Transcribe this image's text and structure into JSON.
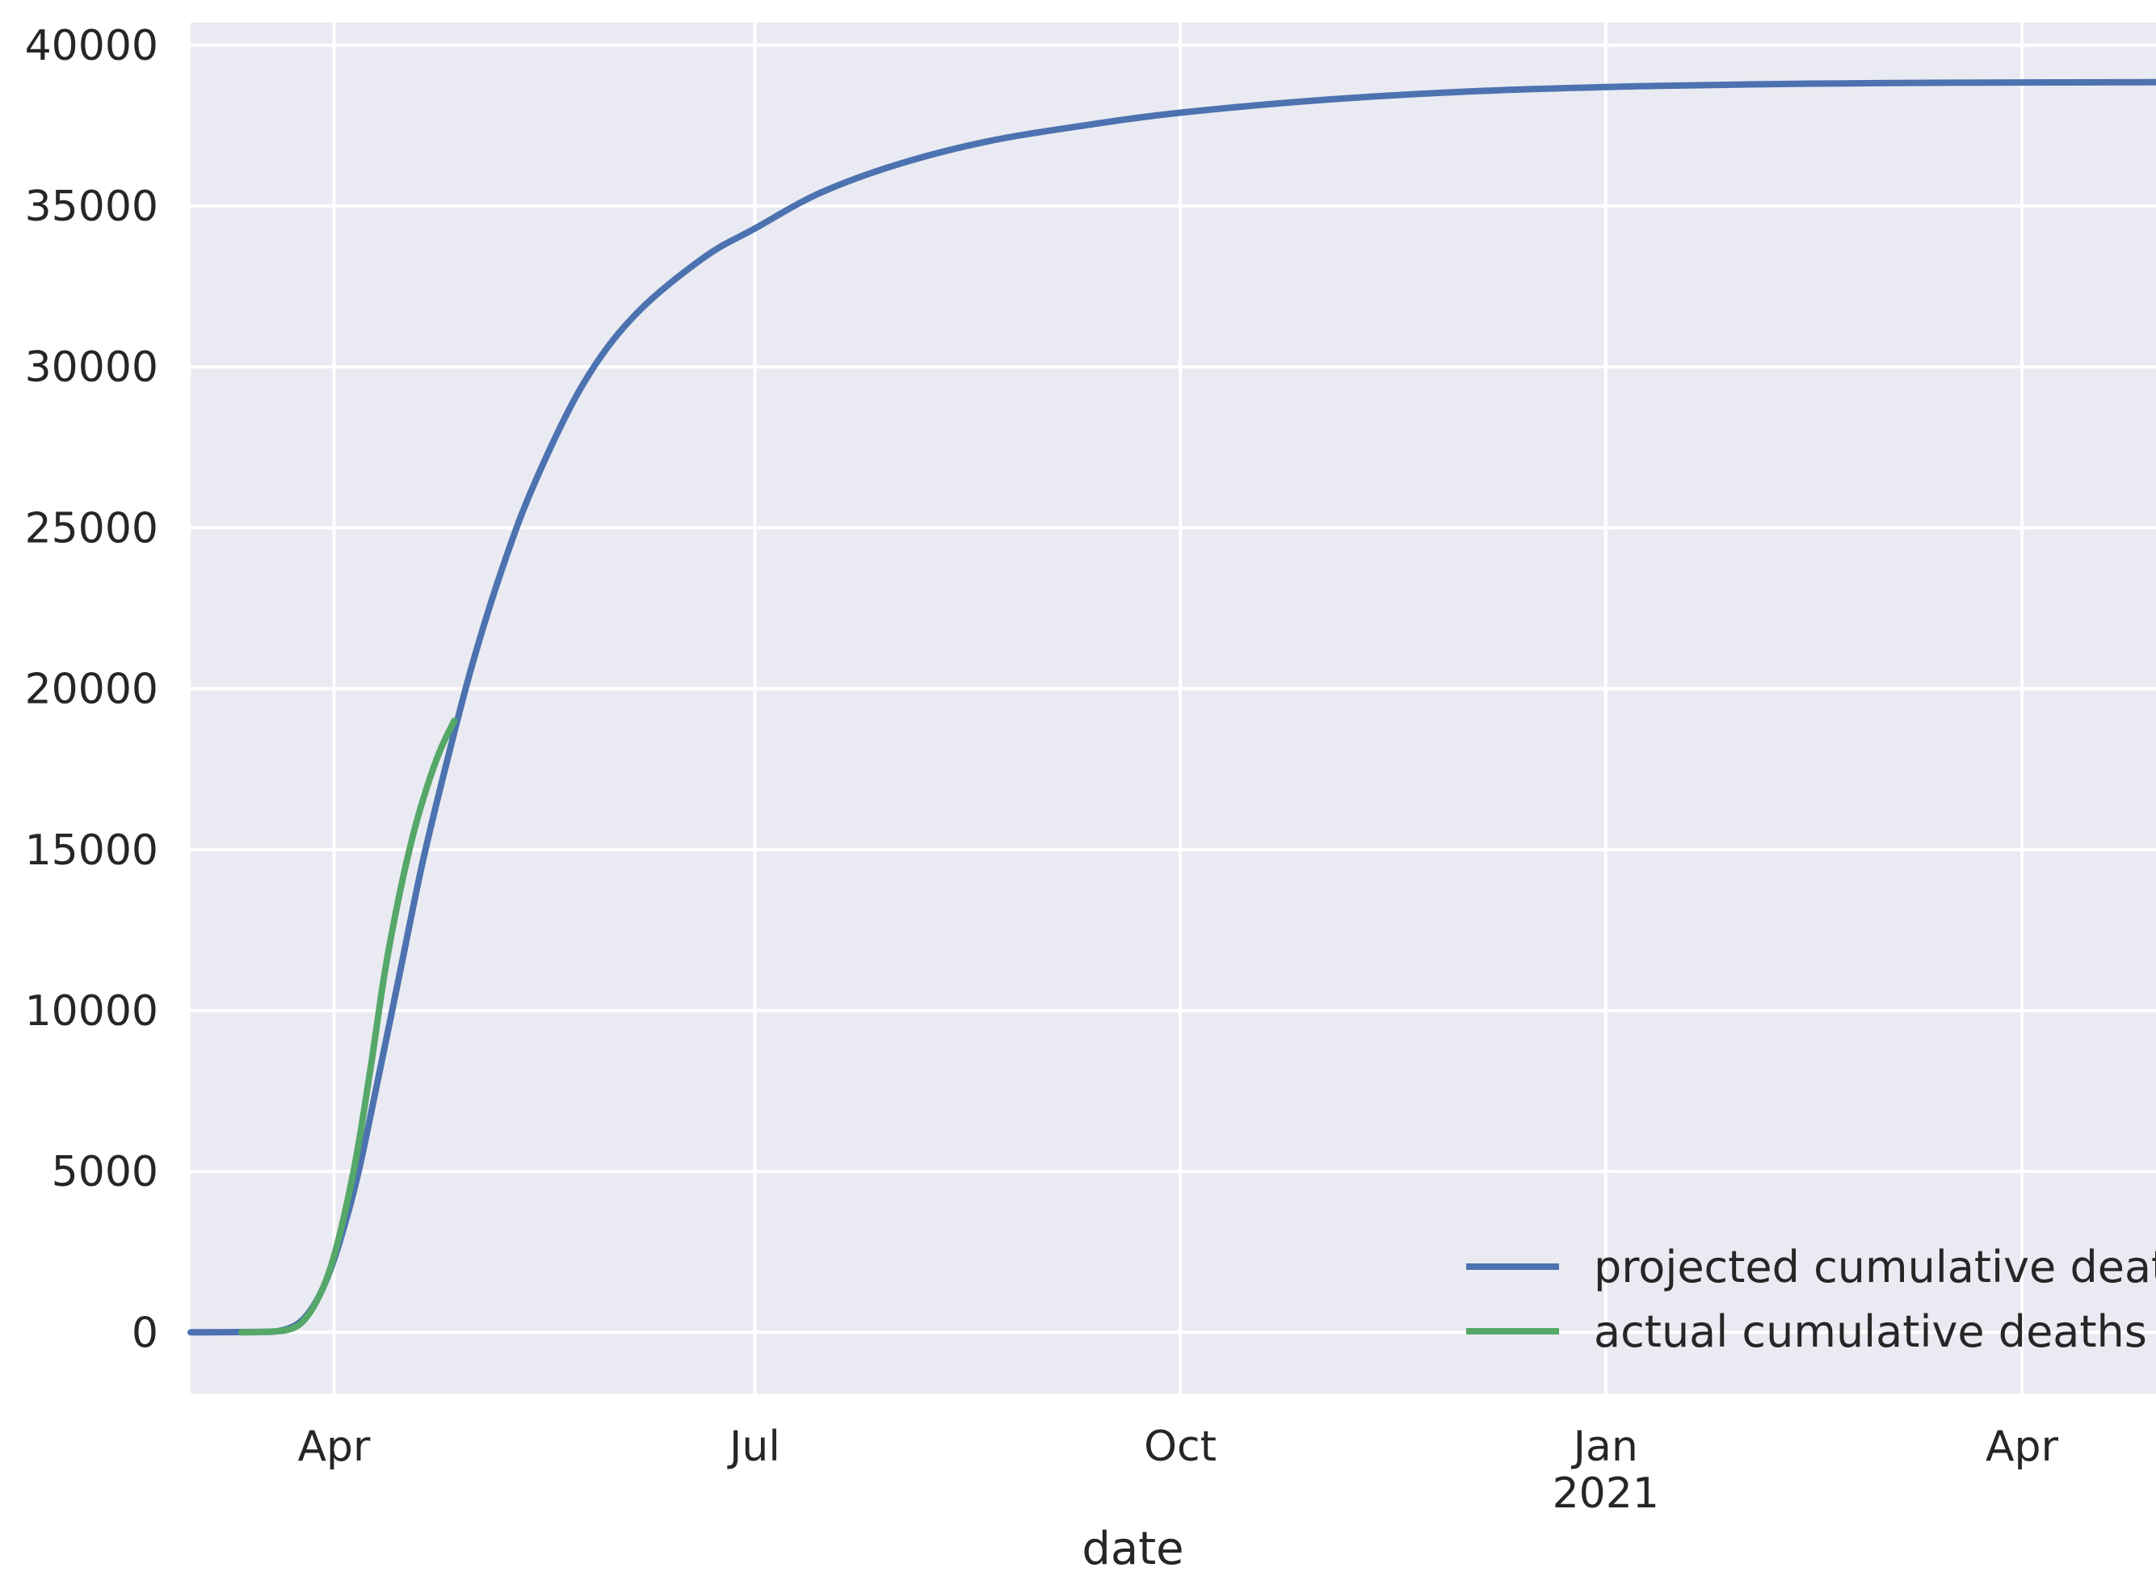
{
  "colors": {
    "background": "#eaeaf2",
    "grid": "#ffffff",
    "projected": "#4c72b0",
    "actual": "#55a868"
  },
  "chart_data": {
    "type": "line",
    "title": "",
    "xlabel": "date",
    "ylabel": "",
    "x_type": "date",
    "xlim": [
      "2020-03-01",
      "2021-04-30"
    ],
    "ylim": [
      -1900,
      40700
    ],
    "grid": true,
    "legend_position": "lower-right",
    "y_ticks": [
      0,
      5000,
      10000,
      15000,
      20000,
      25000,
      30000,
      35000,
      40000
    ],
    "y_tick_labels": [
      "0",
      "5000",
      "10000",
      "15000",
      "20000",
      "25000",
      "30000",
      "35000",
      "40000"
    ],
    "x_ticks": [
      {
        "date": "2020-04-01",
        "label": "Apr",
        "sublabel": ""
      },
      {
        "date": "2020-07-01",
        "label": "Jul",
        "sublabel": ""
      },
      {
        "date": "2020-10-01",
        "label": "Oct",
        "sublabel": ""
      },
      {
        "date": "2021-01-01",
        "label": "Jan",
        "sublabel": "2021"
      },
      {
        "date": "2021-04-01",
        "label": "Apr",
        "sublabel": ""
      }
    ],
    "series": [
      {
        "name": "projected cumulative deaths",
        "color": "#4c72b0",
        "points": [
          [
            "2020-03-01",
            0
          ],
          [
            "2020-03-15",
            10
          ],
          [
            "2020-03-20",
            40
          ],
          [
            "2020-03-24",
            250
          ],
          [
            "2020-03-27",
            700
          ],
          [
            "2020-03-30",
            1500
          ],
          [
            "2020-04-02",
            2700
          ],
          [
            "2020-04-06",
            4800
          ],
          [
            "2020-04-10",
            7500
          ],
          [
            "2020-04-15",
            11000
          ],
          [
            "2020-04-20",
            14500
          ],
          [
            "2020-04-25",
            17500
          ],
          [
            "2020-05-01",
            20800
          ],
          [
            "2020-05-08",
            24000
          ],
          [
            "2020-05-15",
            26600
          ],
          [
            "2020-05-25",
            29500
          ],
          [
            "2020-06-05",
            31600
          ],
          [
            "2020-06-20",
            33400
          ],
          [
            "2020-07-01",
            34300
          ],
          [
            "2020-07-15",
            35400
          ],
          [
            "2020-08-01",
            36300
          ],
          [
            "2020-08-20",
            37000
          ],
          [
            "2020-09-10",
            37500
          ],
          [
            "2020-10-01",
            37900
          ],
          [
            "2020-11-01",
            38300
          ],
          [
            "2020-12-01",
            38550
          ],
          [
            "2021-01-01",
            38700
          ],
          [
            "2021-02-01",
            38780
          ],
          [
            "2021-03-01",
            38820
          ],
          [
            "2021-04-01",
            38840
          ],
          [
            "2021-04-30",
            38850
          ]
        ]
      },
      {
        "name": "actual cumulative deaths",
        "color": "#55a868",
        "points": [
          [
            "2020-03-12",
            0
          ],
          [
            "2020-03-18",
            20
          ],
          [
            "2020-03-22",
            80
          ],
          [
            "2020-03-25",
            300
          ],
          [
            "2020-03-28",
            900
          ],
          [
            "2020-03-31",
            1900
          ],
          [
            "2020-04-03",
            3500
          ],
          [
            "2020-04-06",
            5600
          ],
          [
            "2020-04-09",
            8300
          ],
          [
            "2020-04-12",
            11200
          ],
          [
            "2020-04-15",
            13500
          ],
          [
            "2020-04-18",
            15400
          ],
          [
            "2020-04-21",
            16900
          ],
          [
            "2020-04-24",
            18100
          ],
          [
            "2020-04-27",
            19000
          ]
        ]
      }
    ]
  }
}
